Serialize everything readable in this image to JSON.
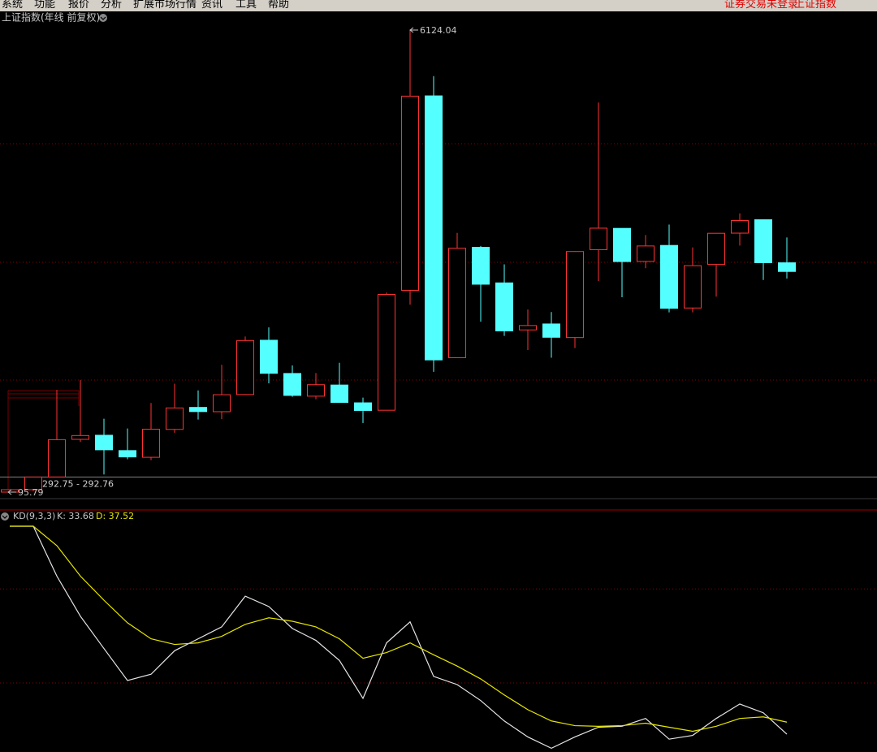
{
  "menu": [
    "系统",
    "功能",
    "报价",
    "分析",
    "扩展市场行情",
    "资讯",
    "工具",
    "帮助"
  ],
  "status": "证券交易未登录",
  "menu_symbol": "上证指数",
  "chart_data": [
    {
      "type": "candlestick",
      "title": "上证指数(年线 前复权)",
      "open": [
        96.05,
        127.61,
        293.74,
        784.13,
        837.7,
        637.72,
        550.26,
        914.06,
        1200.95,
        1144.89,
        1368.69,
        2077.08,
        1643.48,
        1347.43,
        1492.72,
        1260.78,
        1163.88,
        2728.19,
        5265.0,
        1849.02,
        3289.75,
        2825.33,
        2212.0,
        2289.51,
        2112.13,
        3258.63,
        3536.59,
        3105.31,
        3314.03,
        2497.88,
        3066.34,
        3474.68,
        3649.15,
        3087.51
      ],
      "high": [
        127.61,
        292.75,
        1429.01,
        1558.95,
        1052.94,
        926.41,
        1258.69,
        1510.18,
        1422.98,
        1756.18,
        2125.72,
        2245.44,
        1748.89,
        1649.6,
        1783.01,
        1328.53,
        2698.9,
        6124.04,
        5522.78,
        3478.01,
        3306.75,
        3067.46,
        2478.38,
        2444.8,
        3239.36,
        5178.19,
        3538.69,
        3450.49,
        3587.03,
        3288.45,
        3474.92,
        3731.69,
        3651.89,
        3418.95
      ],
      "low": [
        95.79,
        105.77,
        292.76,
        750.46,
        325.89,
        524.43,
        512.83,
        870.18,
        1043.02,
        1047.83,
        1361.21,
        1514.86,
        1339.2,
        1307.4,
        1259.43,
        998.23,
        1161.91,
        2541.52,
        1664.93,
        1844.09,
        2319.74,
        2134.02,
        1949.46,
        1849.65,
        1974.38,
        2850.71,
        2638.3,
        3016.53,
        2440.91,
        2440.91,
        2646.8,
        3312.72,
        2863.65,
        2882.02
      ],
      "close": [
        127.61,
        292.75,
        780.39,
        833.8,
        647.87,
        555.29,
        917.01,
        1194.1,
        1146.7,
        1366.58,
        2073.48,
        1645.97,
        1357.65,
        1497.04,
        1266.5,
        1161.06,
        2675.47,
        5261.56,
        1820.81,
        3277.14,
        2808.08,
        2199.42,
        2269.13,
        2115.98,
        3234.68,
        3539.18,
        3103.64,
        3307.17,
        2493.9,
        3050.12,
        3473.07,
        3639.78,
        3089.26,
        2974.93
      ],
      "up_color": "#ff3232",
      "down_color": "#54ffff",
      "ylim": [
        11,
        6198
      ],
      "yticks": [
        1558,
        3094,
        4641
      ],
      "grid": true,
      "high_label": "6124.04",
      "low_label": "95.79",
      "crosshair": 292.75,
      "crosshair_label": "292.75 - 292.76"
    },
    {
      "type": "line",
      "title": "KD(9,3,3)",
      "series": [
        {
          "label": "K: 33.68",
          "color": "#e6e6e6",
          "values": [
            100,
            100,
            84.1,
            71.3,
            61.0,
            50.8,
            52.8,
            60.3,
            64.1,
            67.9,
            77.7,
            74.4,
            67.4,
            63.6,
            57.2,
            45.1,
            62.8,
            69.5,
            52.1,
            49.5,
            44.4,
            37.9,
            32.8,
            29.2,
            32.8,
            35.9,
            36.2,
            38.7,
            32.1,
            33.3,
            38.7,
            43.3,
            40.5,
            33.68
          ]
        },
        {
          "label": "D: 37.52",
          "color": "#e6e600",
          "values": [
            100,
            100,
            93.8,
            84.1,
            76.4,
            69.2,
            64.1,
            62.3,
            62.8,
            64.9,
            68.7,
            70.8,
            69.7,
            67.9,
            64.1,
            57.9,
            59.7,
            62.8,
            59.0,
            55.4,
            51.3,
            46.2,
            41.5,
            37.9,
            36.4,
            36.2,
            36.4,
            37.2,
            35.9,
            34.6,
            36.2,
            38.7,
            39.2,
            37.52
          ]
        }
      ],
      "ylim": [
        28,
        100
      ],
      "yticks": [
        50,
        80
      ],
      "grid": true
    }
  ]
}
